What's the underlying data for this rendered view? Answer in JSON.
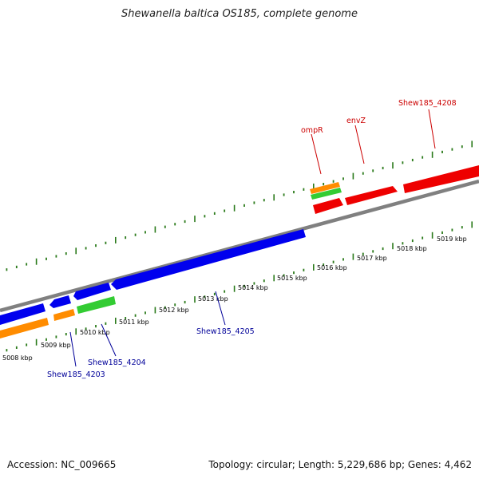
{
  "title": "Shewanella baltica OS185, complete genome",
  "footer": {
    "accession": "Accession: NC_009665",
    "stats": "Topology: circular; Length: 5,229,686 bp; Genes: 4,462"
  },
  "colors": {
    "backbone": "#808080",
    "tick": "#2a7a1a",
    "forward_gene": "#ee0000",
    "reverse_gene": "#0000ee",
    "orange_feature": "#ff8c00",
    "green_feature": "#33cc33",
    "label_forward": "#cc0000",
    "label_reverse": "#000099"
  },
  "kbp_labels": [
    "5008 kbp",
    "5009 kbp",
    "5010 kbp",
    "5011 kbp",
    "5012 kbp",
    "5013 kbp",
    "5014 kbp",
    "5015 kbp",
    "5016 kbp",
    "5017 kbp",
    "5018 kbp",
    "5019 kbp"
  ],
  "gene_labels": {
    "ompR": "ompR",
    "envZ": "envZ",
    "shew4208": "Shew185_4208",
    "shew4203": "Shew185_4203",
    "shew4204": "Shew185_4204",
    "shew4205": "Shew185_4205"
  }
}
